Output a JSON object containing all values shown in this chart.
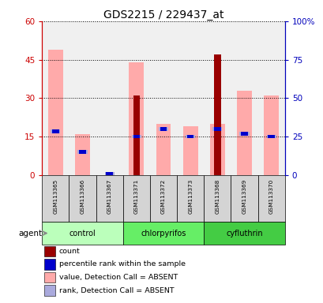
{
  "title": "GDS2215 / 229437_at",
  "samples": [
    "GSM113365",
    "GSM113366",
    "GSM113367",
    "GSM113371",
    "GSM113372",
    "GSM113373",
    "GSM113368",
    "GSM113369",
    "GSM113370"
  ],
  "groups": [
    {
      "label": "control",
      "start": 0,
      "end": 3
    },
    {
      "label": "chlorpyrifos",
      "start": 3,
      "end": 6
    },
    {
      "label": "cyfluthrin",
      "start": 6,
      "end": 9
    }
  ],
  "pink_bar_heights": [
    49,
    16,
    0,
    44,
    20,
    19,
    20,
    33,
    31
  ],
  "red_bar_heights": [
    0,
    0,
    0,
    31,
    0,
    0,
    47,
    0,
    0
  ],
  "blue_marker_y": [
    17,
    9,
    0.5,
    15,
    18,
    15,
    18,
    16,
    15
  ],
  "light_blue_marker_y": [
    17,
    9,
    0.5,
    15,
    18,
    15,
    18,
    16,
    15
  ],
  "ylim_left": [
    0,
    60
  ],
  "ylim_right": [
    0,
    100
  ],
  "yticks_left": [
    0,
    15,
    30,
    45,
    60
  ],
  "ytick_labels_left": [
    "0",
    "15",
    "30",
    "45",
    "60"
  ],
  "yticks_right": [
    0,
    25,
    50,
    75,
    100
  ],
  "ytick_labels_right": [
    "0",
    "25",
    "50",
    "75",
    "100%"
  ],
  "left_axis_color": "#cc0000",
  "right_axis_color": "#0000bb",
  "pink_color": "#ffaaaa",
  "red_color": "#990000",
  "blue_color": "#0000cc",
  "light_blue_color": "#aaaadd",
  "bg_plot": "#f0f0f0",
  "group_colors": [
    "#bbffbb",
    "#66ee66",
    "#44cc44"
  ],
  "legend_items": [
    {
      "color": "#990000",
      "label": "count"
    },
    {
      "color": "#0000cc",
      "label": "percentile rank within the sample"
    },
    {
      "color": "#ffaaaa",
      "label": "value, Detection Call = ABSENT"
    },
    {
      "color": "#aaaadd",
      "label": "rank, Detection Call = ABSENT"
    }
  ]
}
